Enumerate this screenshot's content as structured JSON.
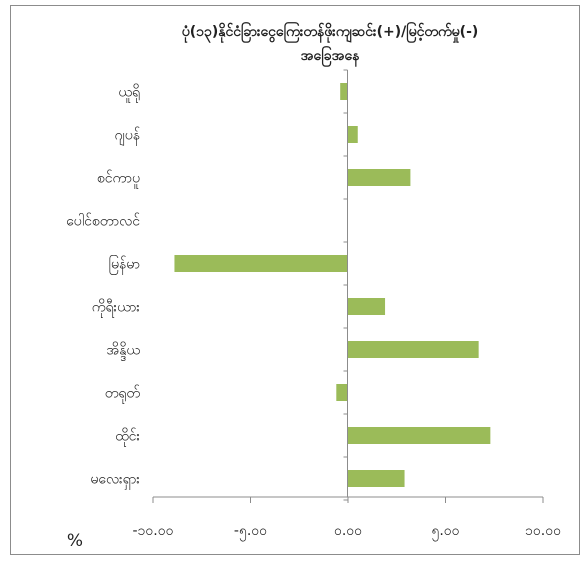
{
  "chart_data": {
    "type": "bar",
    "orientation": "horizontal",
    "title": "ပုံ(၁၃)နိုင်ငံခြားငွေကြေးတန်ဖိုးကျဆင်း(+)/မြင့်တက်မှု(-) အခြေအနေ",
    "xlabel": "%",
    "ylabel": "",
    "xlim": [
      -10,
      10
    ],
    "xticks": [
      "-၁၀.၀၀",
      "-၅.၀၀",
      "၀.၀၀",
      "၅.၀၀",
      "၁၀.၀၀"
    ],
    "xtick_values": [
      -10,
      -5,
      0,
      5,
      10
    ],
    "categories": [
      "ယူရို",
      "ဂျပန်",
      "စင်ကာပူ",
      "ပေါင်စတာလင်",
      "မြန်မာ",
      "ကိုရီးယား",
      "အိန္ဒိယ",
      "တရုတ်",
      "ထိုင်း",
      "မလေးရှား"
    ],
    "values": [
      -0.4,
      0.5,
      3.2,
      0.0,
      -8.9,
      1.9,
      6.7,
      -0.6,
      7.3,
      2.9
    ],
    "bar_color": "#9bbb59",
    "grid": false,
    "legend": "none"
  }
}
